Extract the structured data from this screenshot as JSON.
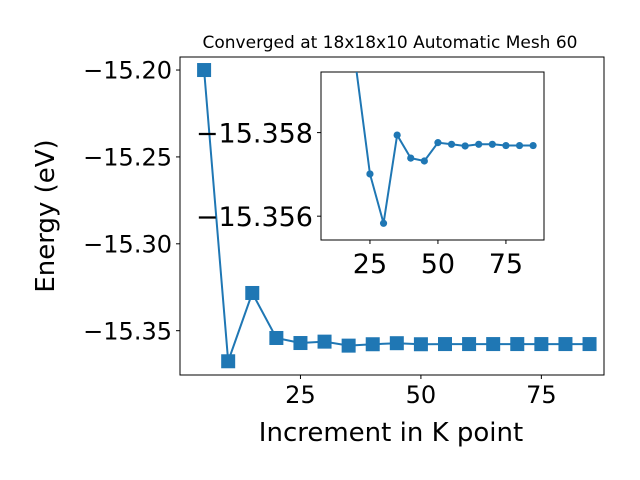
{
  "chart_data": [
    {
      "type": "line",
      "title": "Converged at 18x18x10 Automatic Mesh 60",
      "xlabel": "Increment in K point",
      "ylabel": "Energy (eV)",
      "x": [
        5,
        10,
        15,
        20,
        25,
        30,
        35,
        40,
        45,
        50,
        55,
        60,
        65,
        70,
        75,
        80,
        85
      ],
      "series": [
        {
          "marker": "square",
          "color": "#1f77b4",
          "values": [
            -15.2,
            -15.3676,
            -15.3283,
            -15.3542,
            -15.3571,
            -15.3563,
            -15.3586,
            -15.3578,
            -15.3572,
            -15.3578,
            -15.3577,
            -15.3577,
            -15.3577,
            -15.3577,
            -15.3577,
            -15.3577,
            -15.3577
          ]
        }
      ],
      "xlim": [
        0,
        88
      ],
      "ylim": [
        -15.3755,
        -15.1925
      ],
      "xticks": [
        25,
        50,
        75
      ],
      "xtick_labels": [
        "25",
        "50",
        "75"
      ],
      "yticks": [
        -15.2,
        -15.25,
        -15.3,
        -15.35
      ],
      "ytick_labels": [
        "−15.20",
        "−15.25",
        "−15.30",
        "−15.35"
      ],
      "grid": false
    },
    {
      "type": "line",
      "role": "inset",
      "x": [
        20,
        25,
        30,
        35,
        40,
        45,
        50,
        55,
        60,
        65,
        70,
        75,
        80,
        85
      ],
      "series": [
        {
          "marker": "circle",
          "color": "#1f77b4",
          "values": [
            -15.3595,
            -15.35701,
            -15.35583,
            -15.35794,
            -15.35739,
            -15.35732,
            -15.35776,
            -15.35772,
            -15.35768,
            -15.35772,
            -15.35772,
            -15.35769,
            -15.35769,
            -15.35769
          ]
        }
      ],
      "xlim": [
        7,
        89
      ],
      "ylim": [
        -15.35543,
        -15.35945
      ],
      "xticks": [
        25,
        50,
        75
      ],
      "xtick_labels": [
        "25",
        "50",
        "75"
      ],
      "yticks": [
        -15.358,
        -15.356
      ],
      "ytick_labels": [
        "−15.358",
        "−15.356"
      ],
      "grid": false
    }
  ]
}
